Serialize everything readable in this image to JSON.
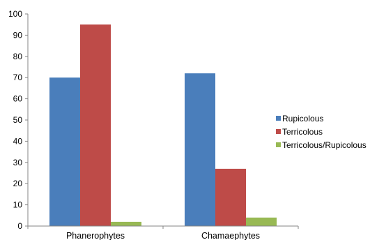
{
  "chart_data": {
    "type": "bar",
    "categories": [
      "Phanerophytes",
      "Chamaephytes"
    ],
    "series": [
      {
        "name": "Rupicolous",
        "values": [
          70,
          72
        ],
        "color": "#4a7ebb"
      },
      {
        "name": "Terricolous",
        "values": [
          95,
          27
        ],
        "color": "#be4b48"
      },
      {
        "name": "Terricolous/Rupicolous",
        "values": [
          2,
          4
        ],
        "color": "#98b954"
      }
    ],
    "ylim": [
      0,
      100
    ],
    "yticks": [
      0,
      10,
      20,
      30,
      40,
      50,
      60,
      70,
      80,
      90,
      100
    ],
    "grid": false,
    "legend_position": "right"
  }
}
